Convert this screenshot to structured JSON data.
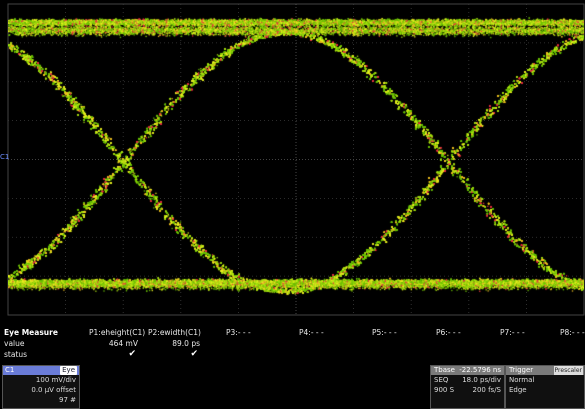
{
  "screen": {
    "channel_marker": "C1"
  },
  "measure": {
    "title": "Eye Measure",
    "row_labels": {
      "value": "value",
      "status": "status"
    },
    "params": [
      {
        "name": "P1:eheight(C1)",
        "value": "464 mV",
        "status": "✔"
      },
      {
        "name": "P2:ewidth(C1)",
        "value": "89.0 ps",
        "status": "✔"
      },
      {
        "name": "P3:- - -",
        "value": "",
        "status": ""
      },
      {
        "name": "P4:- - -",
        "value": "",
        "status": ""
      },
      {
        "name": "P5:- - -",
        "value": "",
        "status": ""
      },
      {
        "name": "P6:- - -",
        "value": "",
        "status": ""
      },
      {
        "name": "P7:- - -",
        "value": "",
        "status": ""
      },
      {
        "name": "P8:- - -",
        "value": "",
        "status": ""
      }
    ]
  },
  "channel": {
    "name": "C1",
    "tag": "Eye",
    "vdiv": "100 mV/div",
    "offset": "0.0 µV offset",
    "count": "97 #"
  },
  "timebase": {
    "label": "Tbase",
    "value": "-22.5796 ns",
    "mode": "SEQ",
    "tdiv": "18.0 ps/div",
    "samples": "900 S",
    "rate": "200 fs/S"
  },
  "trigger": {
    "label": "Trigger",
    "chip": "Prescaler",
    "mode": "Normal",
    "type": "Edge"
  },
  "colors": {
    "accent": "#6a7cd8",
    "trace_yellow": "#e8f020",
    "trace_green": "#7ed020",
    "trace_red": "#e8303c"
  }
}
